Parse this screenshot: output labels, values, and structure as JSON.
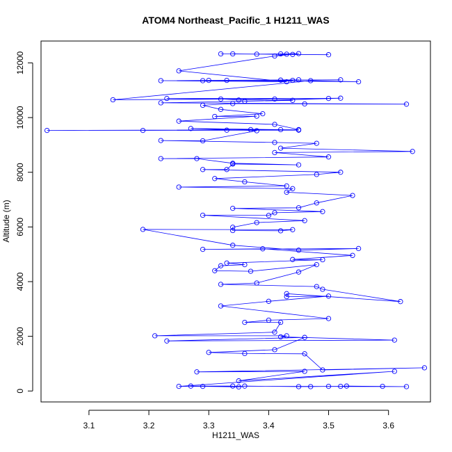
{
  "chart_data": {
    "type": "line",
    "title": "ATOM4 Northeast_Pacific_1 H1211_WAS",
    "xlabel": "H1211_WAS",
    "ylabel": "Altitude (m)",
    "xlim": [
      3.02,
      3.67
    ],
    "ylim": [
      -400,
      12800
    ],
    "xticks": [
      "3.1",
      "3.2",
      "3.3",
      "3.4",
      "3.5",
      "3.6"
    ],
    "yticks": [
      "0",
      "2000",
      "4000",
      "6000",
      "8000",
      "10000",
      "12000"
    ],
    "color": "#0000ff",
    "markers": "open-circle",
    "series": [
      {
        "name": "H1211_WAS vs Altitude",
        "points": [
          [
            3.32,
            12330
          ],
          [
            3.5,
            12300
          ],
          [
            3.44,
            12310
          ],
          [
            3.34,
            12330
          ],
          [
            3.38,
            12320
          ],
          [
            3.42,
            12330
          ],
          [
            3.45,
            12340
          ],
          [
            3.41,
            12250
          ],
          [
            3.43,
            12320
          ],
          [
            3.25,
            11710
          ],
          [
            3.43,
            11310
          ],
          [
            3.22,
            11350
          ],
          [
            3.52,
            11380
          ],
          [
            3.42,
            11370
          ],
          [
            3.44,
            11360
          ],
          [
            3.29,
            11350
          ],
          [
            3.3,
            11360
          ],
          [
            3.45,
            11380
          ],
          [
            3.33,
            11360
          ],
          [
            3.55,
            11310
          ],
          [
            3.47,
            11350
          ],
          [
            3.14,
            10650
          ],
          [
            3.5,
            10700
          ],
          [
            3.23,
            10700
          ],
          [
            3.32,
            10680
          ],
          [
            3.35,
            10640
          ],
          [
            3.41,
            10680
          ],
          [
            3.52,
            10710
          ],
          [
            3.36,
            10600
          ],
          [
            3.44,
            10630
          ],
          [
            3.22,
            10540
          ],
          [
            3.63,
            10490
          ],
          [
            3.46,
            10500
          ],
          [
            3.34,
            10510
          ],
          [
            3.29,
            10450
          ],
          [
            3.32,
            10300
          ],
          [
            3.39,
            10140
          ],
          [
            3.31,
            10040
          ],
          [
            3.38,
            10050
          ],
          [
            3.25,
            9870
          ],
          [
            3.41,
            9750
          ],
          [
            3.45,
            9560
          ],
          [
            3.03,
            9530
          ],
          [
            3.45,
            9540
          ],
          [
            3.19,
            9530
          ],
          [
            3.37,
            9560
          ],
          [
            3.33,
            9540
          ],
          [
            3.42,
            9560
          ],
          [
            3.27,
            9600
          ],
          [
            3.38,
            9520
          ],
          [
            3.29,
            9150
          ],
          [
            3.22,
            9160
          ],
          [
            3.41,
            9090
          ],
          [
            3.48,
            9060
          ],
          [
            3.42,
            8880
          ],
          [
            3.64,
            8760
          ],
          [
            3.41,
            8720
          ],
          [
            3.5,
            8560
          ],
          [
            3.22,
            8500
          ],
          [
            3.28,
            8500
          ],
          [
            3.34,
            8330
          ],
          [
            3.45,
            8270
          ],
          [
            3.34,
            8300
          ],
          [
            3.33,
            8100
          ],
          [
            3.29,
            8100
          ],
          [
            3.52,
            8000
          ],
          [
            3.48,
            7920
          ],
          [
            3.31,
            7770
          ],
          [
            3.36,
            7650
          ],
          [
            3.43,
            7500
          ],
          [
            3.25,
            7460
          ],
          [
            3.44,
            7400
          ],
          [
            3.43,
            7270
          ],
          [
            3.54,
            7150
          ],
          [
            3.48,
            6880
          ],
          [
            3.45,
            6700
          ],
          [
            3.34,
            6680
          ],
          [
            3.49,
            6560
          ],
          [
            3.41,
            6520
          ],
          [
            3.4,
            6420
          ],
          [
            3.29,
            6430
          ],
          [
            3.46,
            6230
          ],
          [
            3.38,
            6160
          ],
          [
            3.34,
            5990
          ],
          [
            3.34,
            5870
          ],
          [
            3.42,
            5860
          ],
          [
            3.44,
            5900
          ],
          [
            3.19,
            5910
          ],
          [
            3.34,
            5330
          ],
          [
            3.45,
            5150
          ],
          [
            3.55,
            5210
          ],
          [
            3.29,
            5180
          ],
          [
            3.39,
            5200
          ],
          [
            3.54,
            4960
          ],
          [
            3.44,
            4810
          ],
          [
            3.49,
            4800
          ],
          [
            3.33,
            4680
          ],
          [
            3.36,
            4620
          ],
          [
            3.32,
            4580
          ],
          [
            3.31,
            4400
          ],
          [
            3.37,
            4380
          ],
          [
            3.48,
            4620
          ],
          [
            3.45,
            4350
          ],
          [
            3.38,
            3950
          ],
          [
            3.32,
            3900
          ],
          [
            3.48,
            3820
          ],
          [
            3.49,
            3720
          ],
          [
            3.62,
            3270
          ],
          [
            3.43,
            3560
          ],
          [
            3.43,
            3450
          ],
          [
            3.5,
            3470
          ],
          [
            3.4,
            3280
          ],
          [
            3.32,
            3110
          ],
          [
            3.5,
            2650
          ],
          [
            3.4,
            2590
          ],
          [
            3.36,
            2510
          ],
          [
            3.42,
            2510
          ],
          [
            3.41,
            2150
          ],
          [
            3.21,
            2020
          ],
          [
            3.43,
            2020
          ],
          [
            3.42,
            1980
          ],
          [
            3.61,
            1860
          ],
          [
            3.23,
            1830
          ],
          [
            3.46,
            1960
          ],
          [
            3.41,
            1510
          ],
          [
            3.3,
            1410
          ],
          [
            3.36,
            1370
          ],
          [
            3.46,
            1360
          ],
          [
            3.49,
            770
          ],
          [
            3.66,
            850
          ],
          [
            3.28,
            700
          ],
          [
            3.46,
            720
          ],
          [
            3.35,
            370
          ],
          [
            3.61,
            720
          ],
          [
            3.25,
            170
          ],
          [
            3.29,
            170
          ],
          [
            3.35,
            150
          ],
          [
            3.36,
            180
          ],
          [
            3.45,
            160
          ],
          [
            3.47,
            160
          ],
          [
            3.5,
            170
          ],
          [
            3.52,
            170
          ],
          [
            3.53,
            180
          ],
          [
            3.59,
            170
          ],
          [
            3.63,
            160
          ],
          [
            3.27,
            180
          ],
          [
            3.34,
            180
          ]
        ]
      }
    ]
  }
}
